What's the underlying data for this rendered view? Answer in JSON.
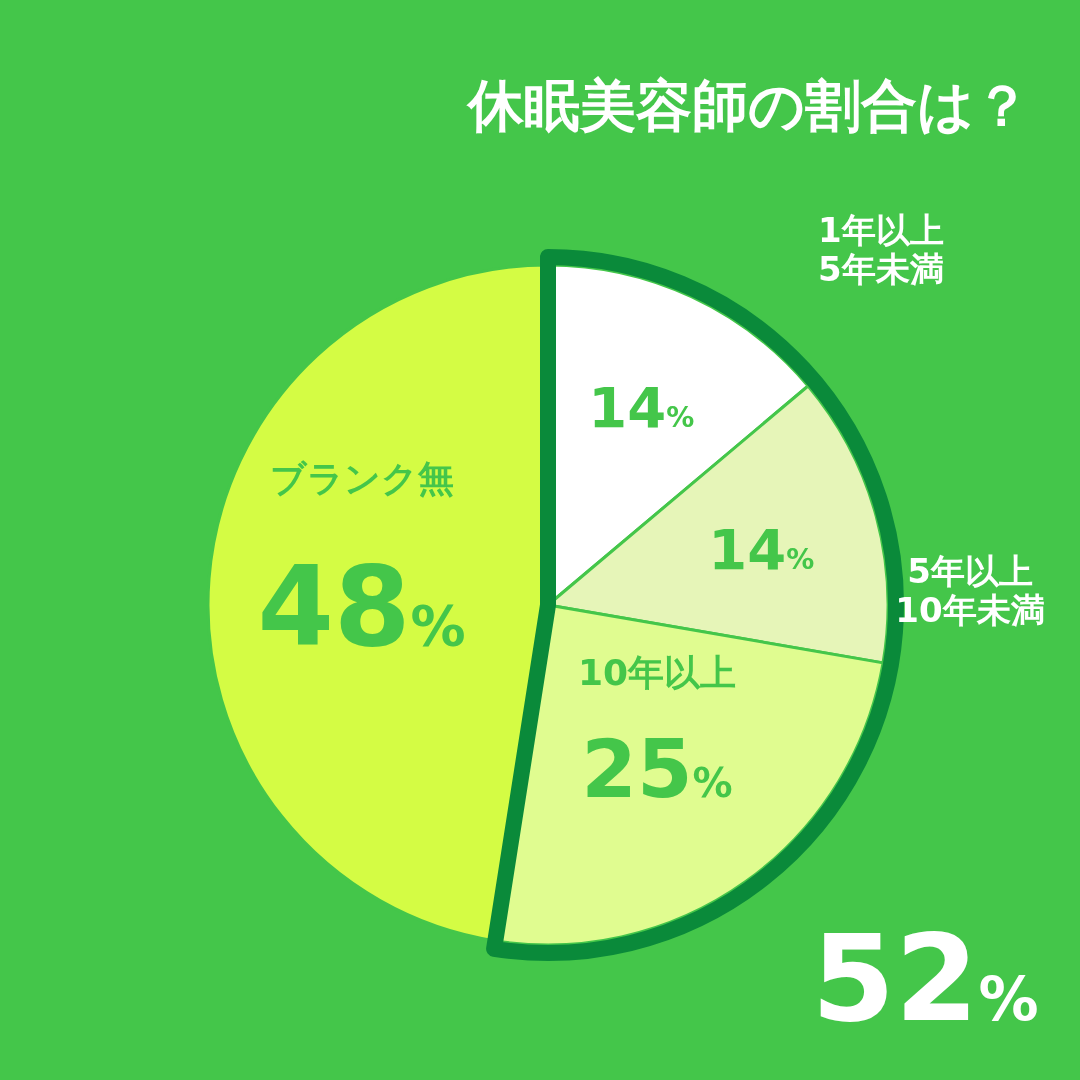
{
  "chart_data": {
    "type": "pie",
    "title": "休眠美容師の割合は？",
    "categories": [
      "1年以上\n5年未満",
      "5年以上\n10年未満",
      "10年以上",
      "ブランク無"
    ],
    "values": [
      14,
      14,
      25,
      48
    ],
    "colors": [
      "#ffffff",
      "#e6f5b8",
      "#e0fc90",
      "#d4fc44"
    ],
    "value_labels": [
      "14%",
      "14%",
      "25%",
      "48%"
    ],
    "annotations": [
      "52%"
    ]
  }
}
